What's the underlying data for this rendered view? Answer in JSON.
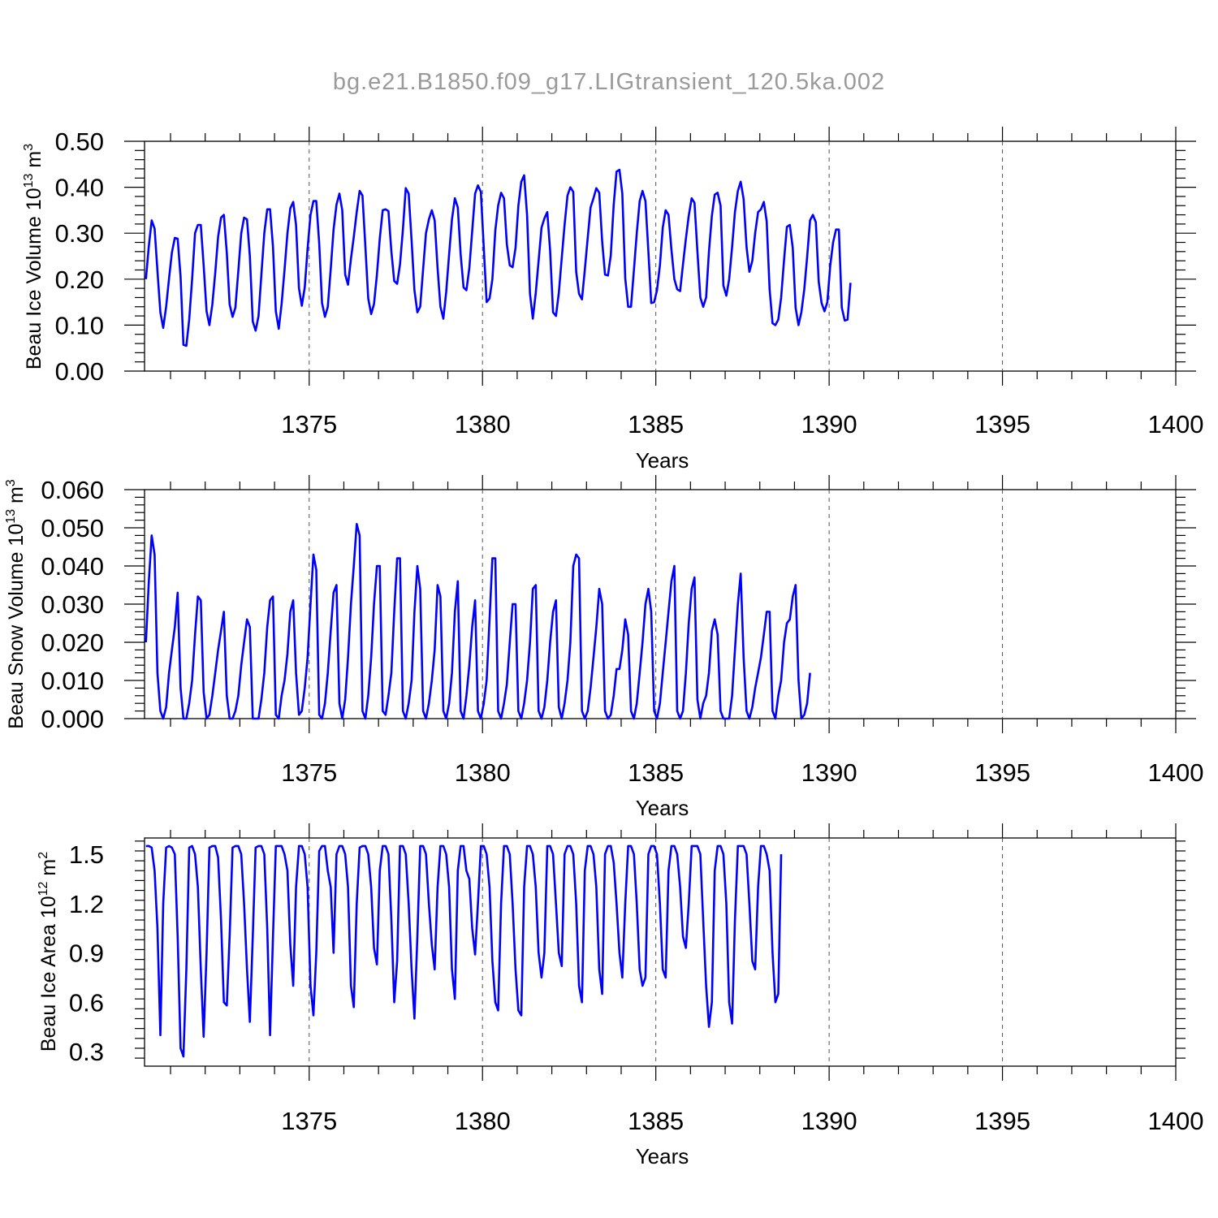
{
  "figure_title": "bg.e21.B1850.f09_g17.LIGtransient_120.5ka.002",
  "chart_data": [
    {
      "type": "line",
      "name": "ice-volume",
      "ylabel_main": "Beau Ice Volume 10",
      "ylabel_sup": "13",
      "ylabel_unit": " m",
      "ylabel_unit_sup": "3",
      "xlabel": "Years",
      "xlim": [
        1370.25,
        1400.0
      ],
      "ylim": [
        0.0,
        0.5
      ],
      "xticks": [
        "1375",
        "1380",
        "1385",
        "1390",
        "1395",
        "1400"
      ],
      "xtick_values": [
        1375,
        1380,
        1385,
        1390,
        1395,
        1400
      ],
      "yticks": [
        "0.00",
        "0.10",
        "0.20",
        "0.30",
        "0.40",
        "0.50"
      ],
      "ytick_values": [
        0.0,
        0.1,
        0.2,
        0.3,
        0.4,
        0.5
      ],
      "grid": "dashed vertical at labeled years",
      "series": [
        {
          "x_start": 1370.29,
          "x_step": 0.0833,
          "values": [
            0.2,
            0.272,
            0.328,
            0.31,
            0.218,
            0.128,
            0.094,
            0.14,
            0.202,
            0.258,
            0.29,
            0.288,
            0.205,
            0.057,
            0.055,
            0.112,
            0.2,
            0.3,
            0.318,
            0.318,
            0.23,
            0.13,
            0.1,
            0.145,
            0.214,
            0.292,
            0.334,
            0.34,
            0.258,
            0.145,
            0.118,
            0.138,
            0.218,
            0.3,
            0.334,
            0.33,
            0.25,
            0.108,
            0.088,
            0.12,
            0.21,
            0.3,
            0.352,
            0.352,
            0.27,
            0.13,
            0.092,
            0.146,
            0.22,
            0.3,
            0.354,
            0.368,
            0.318,
            0.18,
            0.142,
            0.182,
            0.266,
            0.34,
            0.37,
            0.37,
            0.278,
            0.148,
            0.118,
            0.14,
            0.222,
            0.308,
            0.362,
            0.386,
            0.35,
            0.21,
            0.188,
            0.244,
            0.292,
            0.346,
            0.392,
            0.382,
            0.27,
            0.158,
            0.124,
            0.146,
            0.21,
            0.288,
            0.35,
            0.352,
            0.348,
            0.26,
            0.196,
            0.19,
            0.232,
            0.308,
            0.398,
            0.386,
            0.284,
            0.176,
            0.128,
            0.14,
            0.222,
            0.3,
            0.33,
            0.35,
            0.328,
            0.224,
            0.14,
            0.114,
            0.172,
            0.254,
            0.33,
            0.376,
            0.356,
            0.254,
            0.182,
            0.176,
            0.224,
            0.304,
            0.386,
            0.404,
            0.39,
            0.268,
            0.15,
            0.158,
            0.2,
            0.306,
            0.36,
            0.388,
            0.376,
            0.276,
            0.23,
            0.226,
            0.268,
            0.36,
            0.412,
            0.426,
            0.34,
            0.168,
            0.114,
            0.17,
            0.24,
            0.312,
            0.332,
            0.346,
            0.262,
            0.128,
            0.12,
            0.17,
            0.246,
            0.318,
            0.382,
            0.4,
            0.39,
            0.216,
            0.168,
            0.156,
            0.22,
            0.29,
            0.356,
            0.376,
            0.398,
            0.388,
            0.282,
            0.21,
            0.208,
            0.252,
            0.362,
            0.434,
            0.438,
            0.386,
            0.202,
            0.14,
            0.14,
            0.22,
            0.3,
            0.37,
            0.392,
            0.37,
            0.26,
            0.148,
            0.15,
            0.176,
            0.23,
            0.312,
            0.35,
            0.34,
            0.264,
            0.2,
            0.178,
            0.174,
            0.232,
            0.288,
            0.338,
            0.376,
            0.366,
            0.26,
            0.16,
            0.14,
            0.16,
            0.26,
            0.338,
            0.384,
            0.388,
            0.36,
            0.186,
            0.164,
            0.2,
            0.27,
            0.346,
            0.392,
            0.412,
            0.374,
            0.27,
            0.216,
            0.24,
            0.3,
            0.346,
            0.352,
            0.368,
            0.326,
            0.178,
            0.104,
            0.1,
            0.112,
            0.16,
            0.242,
            0.314,
            0.318,
            0.268,
            0.138,
            0.1,
            0.128,
            0.178,
            0.248,
            0.328,
            0.34,
            0.324,
            0.194,
            0.148,
            0.13,
            0.15,
            0.23,
            0.28,
            0.308,
            0.308,
            0.138,
            0.11,
            0.112,
            0.192
          ]
        }
      ]
    },
    {
      "type": "line",
      "name": "snow-volume",
      "ylabel_main": "Beau Snow Volume 10",
      "ylabel_sup": "13",
      "ylabel_unit": " m",
      "ylabel_unit_sup": "3",
      "xlabel": "Years",
      "xlim": [
        1370.25,
        1400.0
      ],
      "ylim": [
        0.0,
        0.06
      ],
      "xticks": [
        "1375",
        "1380",
        "1385",
        "1390",
        "1395",
        "1400"
      ],
      "xtick_values": [
        1375,
        1380,
        1385,
        1390,
        1395,
        1400
      ],
      "yticks": [
        "0.000",
        "0.010",
        "0.020",
        "0.030",
        "0.040",
        "0.050",
        "0.060"
      ],
      "ytick_values": [
        0.0,
        0.01,
        0.02,
        0.03,
        0.04,
        0.05,
        0.06
      ],
      "grid": "dashed vertical at labeled years",
      "series": [
        {
          "x_start": 1370.29,
          "x_step": 0.0833,
          "values": [
            0.02,
            0.036,
            0.048,
            0.043,
            0.012,
            0.002,
            0.0,
            0.003,
            0.012,
            0.018,
            0.024,
            0.033,
            0.008,
            0.0,
            0.0,
            0.004,
            0.01,
            0.022,
            0.032,
            0.031,
            0.007,
            0.0,
            0.001,
            0.006,
            0.012,
            0.018,
            0.023,
            0.028,
            0.006,
            0.0,
            0.0,
            0.002,
            0.006,
            0.014,
            0.02,
            0.026,
            0.024,
            0.0,
            0.0,
            0.0,
            0.005,
            0.012,
            0.024,
            0.031,
            0.032,
            0.001,
            0.0,
            0.006,
            0.01,
            0.017,
            0.028,
            0.031,
            0.012,
            0.001,
            0.002,
            0.008,
            0.016,
            0.03,
            0.043,
            0.039,
            0.001,
            0.0,
            0.004,
            0.012,
            0.023,
            0.033,
            0.035,
            0.004,
            0.0,
            0.005,
            0.016,
            0.03,
            0.04,
            0.051,
            0.048,
            0.002,
            0.0,
            0.006,
            0.016,
            0.03,
            0.04,
            0.04,
            0.002,
            0.001,
            0.006,
            0.012,
            0.028,
            0.042,
            0.042,
            0.002,
            0.0,
            0.004,
            0.01,
            0.028,
            0.04,
            0.034,
            0.002,
            0.0,
            0.004,
            0.01,
            0.018,
            0.035,
            0.032,
            0.002,
            0.0,
            0.004,
            0.012,
            0.028,
            0.036,
            0.002,
            0.0,
            0.006,
            0.014,
            0.024,
            0.031,
            0.002,
            0.0,
            0.004,
            0.01,
            0.026,
            0.042,
            0.042,
            0.002,
            0.0,
            0.004,
            0.009,
            0.02,
            0.03,
            0.03,
            0.002,
            0.0,
            0.004,
            0.01,
            0.02,
            0.034,
            0.035,
            0.002,
            0.0,
            0.003,
            0.01,
            0.02,
            0.028,
            0.031,
            0.003,
            0.0,
            0.004,
            0.01,
            0.02,
            0.04,
            0.043,
            0.042,
            0.002,
            0.0,
            0.002,
            0.008,
            0.016,
            0.024,
            0.034,
            0.03,
            0.002,
            0.0,
            0.001,
            0.006,
            0.013,
            0.013,
            0.018,
            0.026,
            0.022,
            0.002,
            0.0,
            0.004,
            0.012,
            0.02,
            0.03,
            0.034,
            0.028,
            0.002,
            0.0,
            0.004,
            0.012,
            0.02,
            0.028,
            0.036,
            0.04,
            0.002,
            0.0,
            0.002,
            0.012,
            0.025,
            0.034,
            0.037,
            0.005,
            0.0,
            0.004,
            0.006,
            0.012,
            0.023,
            0.026,
            0.022,
            0.002,
            0.0,
            0.0,
            0.0,
            0.006,
            0.018,
            0.03,
            0.038,
            0.016,
            0.002,
            0.0,
            0.003,
            0.008,
            0.012,
            0.016,
            0.022,
            0.028,
            0.028,
            0.002,
            0.0,
            0.006,
            0.01,
            0.02,
            0.025,
            0.026,
            0.032,
            0.035,
            0.01,
            0.0,
            0.001,
            0.004,
            0.012
          ]
        }
      ]
    },
    {
      "type": "line",
      "name": "ice-area",
      "ylabel_main": "Beau Ice Area 10",
      "ylabel_sup": "12",
      "ylabel_unit": " m",
      "ylabel_unit_sup": "2",
      "xlabel": "Years",
      "xlim": [
        1370.25,
        1400.0
      ],
      "ylim": [
        0.2,
        1.6
      ],
      "xticks": [
        "1375",
        "1380",
        "1385",
        "1390",
        "1395",
        "1400"
      ],
      "xtick_values": [
        1375,
        1380,
        1385,
        1390,
        1395,
        1400
      ],
      "yticks": [
        "0.3",
        "0.6",
        "0.9",
        "1.2",
        "1.5"
      ],
      "ytick_values": [
        0.3,
        0.6,
        0.9,
        1.2,
        1.5
      ],
      "grid": "dashed vertical at labeled years",
      "series": [
        {
          "x_start": 1370.29,
          "x_step": 0.0833,
          "values": [
            1.55,
            1.55,
            1.54,
            1.4,
            1.05,
            0.4,
            1.2,
            1.54,
            1.55,
            1.54,
            1.5,
            1.0,
            0.32,
            0.27,
            0.8,
            1.54,
            1.55,
            1.5,
            1.3,
            0.8,
            0.39,
            0.9,
            1.54,
            1.55,
            1.55,
            1.48,
            1.1,
            0.6,
            0.58,
            1.0,
            1.54,
            1.55,
            1.55,
            1.5,
            1.2,
            0.8,
            0.48,
            1.0,
            1.54,
            1.55,
            1.55,
            1.5,
            1.05,
            0.4,
            1.0,
            1.55,
            1.55,
            1.55,
            1.5,
            1.4,
            0.95,
            0.7,
            1.3,
            1.55,
            1.55,
            1.5,
            1.3,
            0.7,
            0.52,
            0.9,
            1.52,
            1.55,
            1.55,
            1.4,
            1.3,
            0.9,
            1.5,
            1.55,
            1.55,
            1.5,
            1.3,
            0.7,
            0.57,
            1.2,
            1.54,
            1.55,
            1.55,
            1.5,
            1.3,
            0.93,
            0.83,
            1.4,
            1.55,
            1.55,
            1.5,
            1.1,
            0.6,
            0.85,
            1.55,
            1.55,
            1.5,
            1.2,
            0.8,
            0.5,
            1.0,
            1.55,
            1.55,
            1.5,
            1.2,
            0.95,
            0.8,
            1.3,
            1.55,
            1.55,
            1.5,
            1.3,
            0.8,
            0.62,
            1.4,
            1.55,
            1.55,
            1.4,
            1.35,
            1.05,
            0.89,
            1.2,
            1.55,
            1.55,
            1.5,
            1.3,
            0.85,
            0.6,
            0.55,
            1.2,
            1.55,
            1.55,
            1.5,
            1.2,
            0.8,
            0.55,
            0.52,
            1.3,
            1.55,
            1.55,
            1.5,
            1.3,
            0.9,
            0.75,
            0.9,
            1.55,
            1.55,
            1.5,
            1.2,
            0.9,
            0.82,
            1.5,
            1.55,
            1.55,
            1.5,
            1.2,
            0.7,
            0.6,
            1.4,
            1.55,
            1.55,
            1.5,
            1.3,
            0.8,
            0.65,
            1.5,
            1.55,
            1.55,
            1.45,
            1.2,
            0.9,
            0.75,
            1.2,
            1.55,
            1.55,
            1.5,
            1.2,
            0.8,
            0.7,
            0.75,
            1.5,
            1.55,
            1.55,
            1.5,
            1.2,
            0.8,
            0.75,
            1.4,
            1.55,
            1.55,
            1.5,
            1.3,
            1.0,
            0.93,
            1.2,
            1.55,
            1.55,
            1.55,
            1.5,
            1.1,
            0.7,
            0.45,
            0.6,
            1.4,
            1.55,
            1.55,
            1.5,
            1.2,
            0.6,
            0.47,
            1.1,
            1.55,
            1.55,
            1.55,
            1.5,
            1.2,
            0.85,
            0.8,
            1.3,
            1.55,
            1.55,
            1.5,
            1.4,
            0.9,
            0.6,
            0.65,
            1.5
          ]
        }
      ]
    }
  ]
}
